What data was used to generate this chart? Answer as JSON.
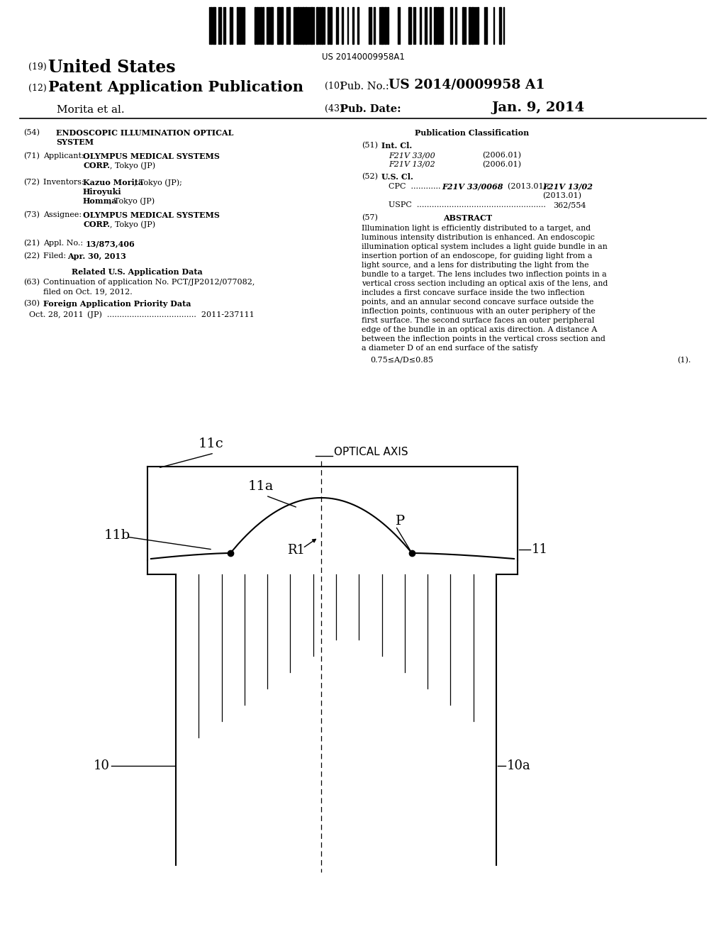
{
  "bg_color": "#ffffff",
  "barcode_text": "US 20140009958A1",
  "diagram": {
    "label_11c": "11c",
    "label_optical_axis": "OPTICAL AXIS",
    "label_11a": "11a",
    "label_11b": "11b",
    "label_R1": "R1",
    "label_P": "P",
    "label_11": "11",
    "label_10": "10",
    "label_10a": "10a"
  }
}
